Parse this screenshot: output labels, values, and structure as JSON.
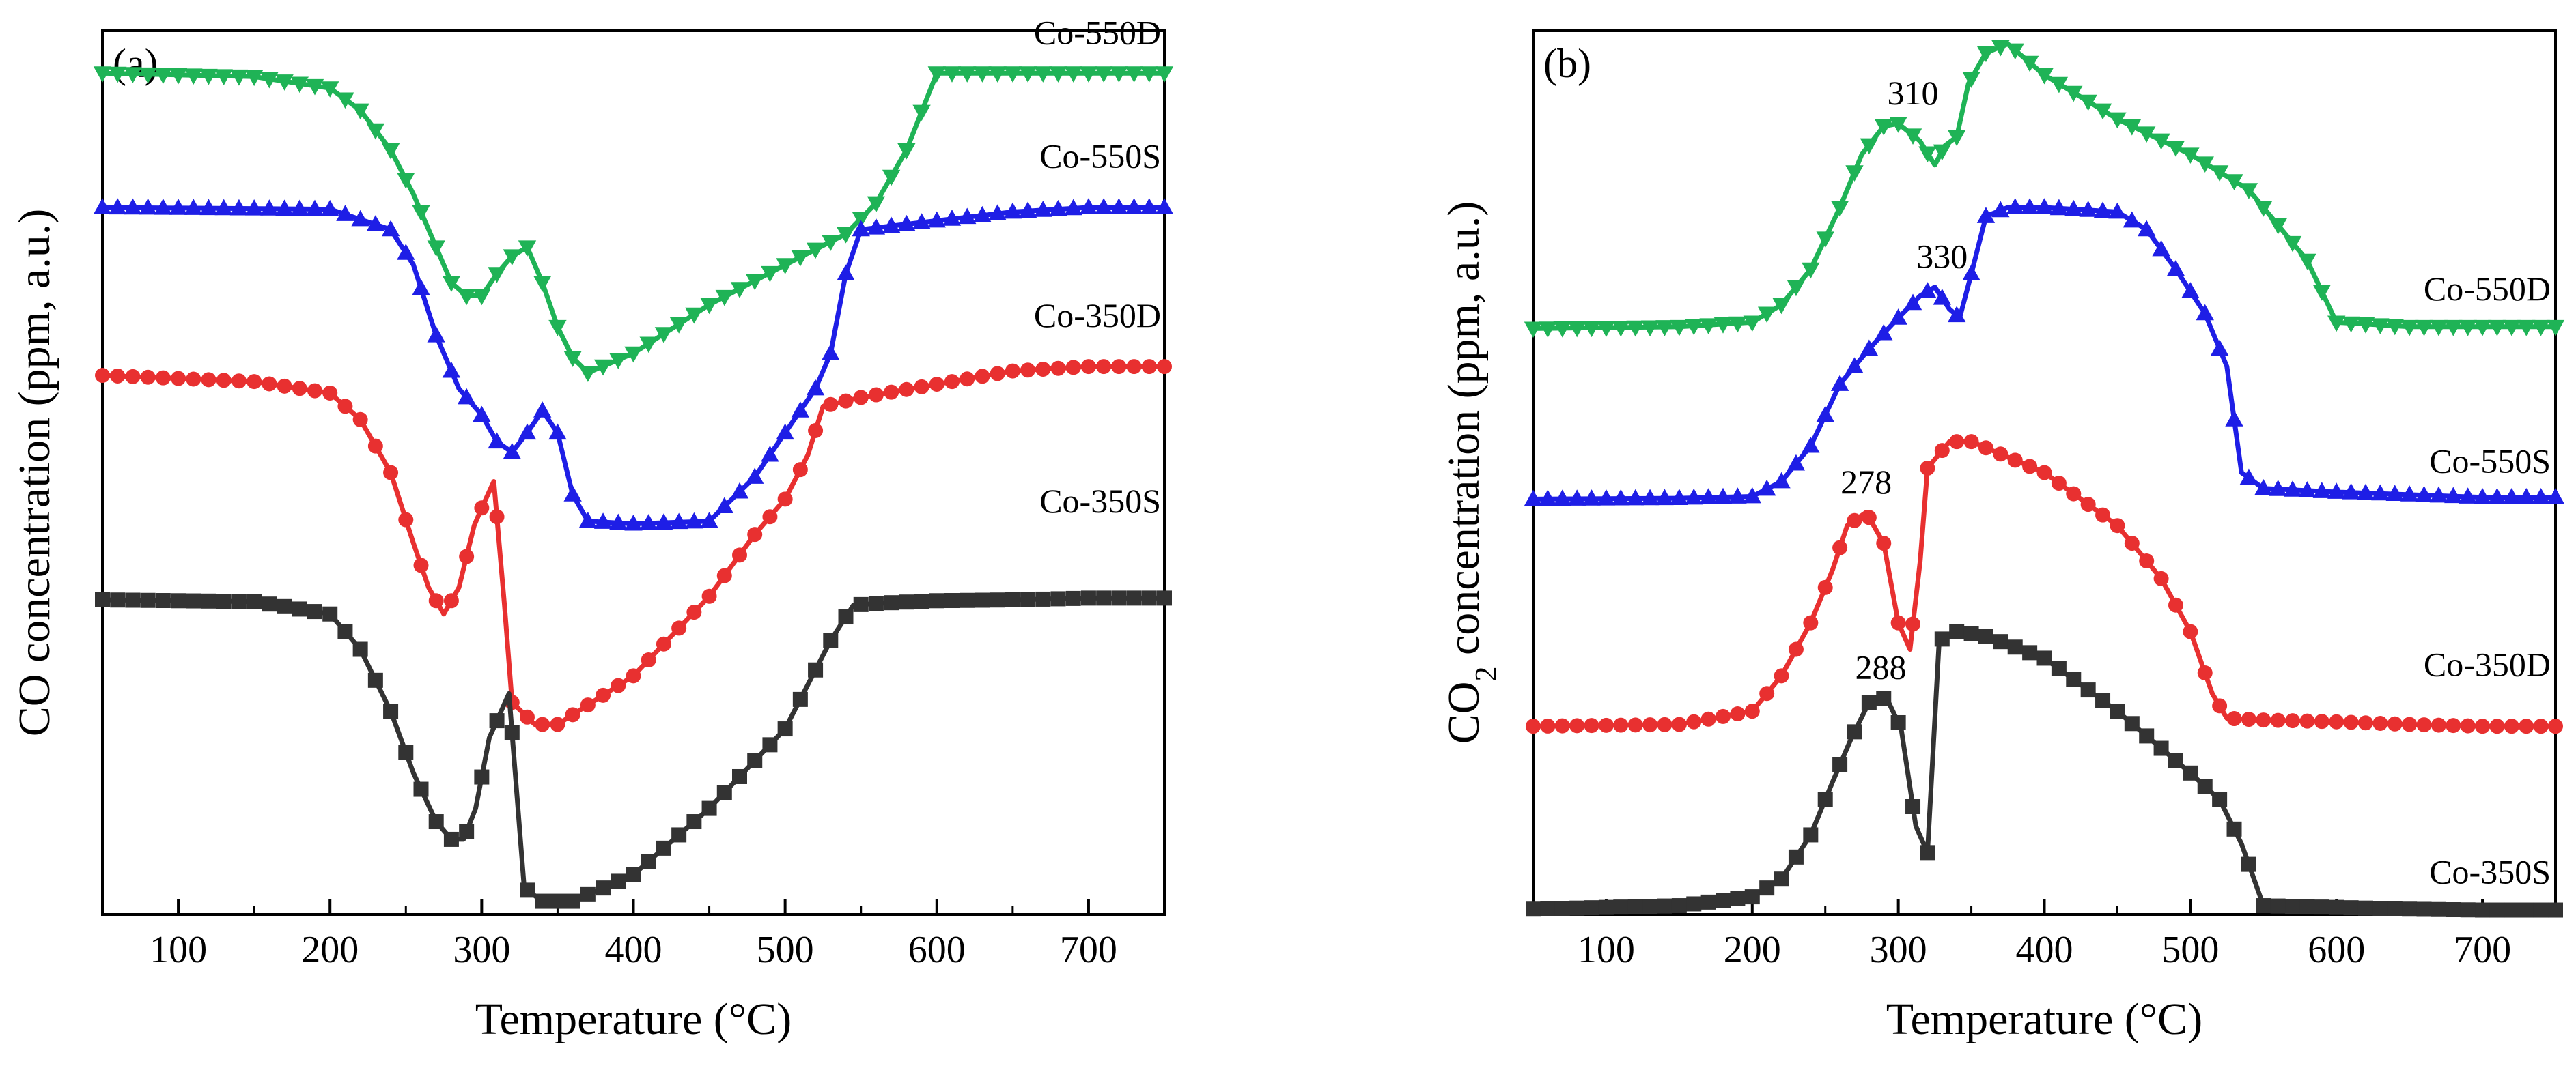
{
  "chart_data": [
    {
      "type": "line",
      "panel_label": "(a)",
      "xlabel": "Temperature (°C)",
      "ylabel": "CO concentration (ppm, a.u.)",
      "xlim": [
        50,
        750
      ],
      "ylim": [
        0,
        1
      ],
      "x_ticks": [
        100,
        200,
        300,
        400,
        500,
        600,
        700
      ],
      "y_ticks_shown": false,
      "series": [
        {
          "name": "Co-550D",
          "color": "#1FB356",
          "marker": "triangle-down",
          "x": [
            50,
            150,
            200,
            220,
            240,
            255,
            270,
            280,
            290,
            300,
            310,
            320,
            330,
            340,
            350,
            360,
            370,
            400,
            450,
            500,
            540,
            560,
            580,
            600,
            650,
            700,
            750
          ],
          "y": [
            0.957,
            0.953,
            0.94,
            0.915,
            0.87,
            0.82,
            0.76,
            0.72,
            0.705,
            0.705,
            0.73,
            0.75,
            0.76,
            0.72,
            0.67,
            0.635,
            0.618,
            0.64,
            0.695,
            0.74,
            0.775,
            0.81,
            0.87,
            0.957,
            0.957,
            0.957,
            0.957
          ]
        },
        {
          "name": "Co-550S",
          "color": "#1E1EE6",
          "marker": "triangle-up",
          "x": [
            50,
            200,
            240,
            255,
            270,
            285,
            300,
            310,
            320,
            330,
            340,
            350,
            360,
            370,
            400,
            450,
            480,
            500,
            520,
            530,
            540,
            550,
            600,
            650,
            700,
            750
          ],
          "y": [
            0.805,
            0.803,
            0.78,
            0.74,
            0.66,
            0.6,
            0.57,
            0.54,
            0.528,
            0.55,
            0.575,
            0.55,
            0.48,
            0.45,
            0.447,
            0.45,
            0.5,
            0.55,
            0.6,
            0.64,
            0.73,
            0.78,
            0.79,
            0.8,
            0.805,
            0.805
          ]
        },
        {
          "name": "Co-350D",
          "color": "#E83030",
          "marker": "circle",
          "x": [
            50,
            150,
            200,
            220,
            240,
            255,
            265,
            275,
            285,
            295,
            300,
            308,
            315,
            320,
            335,
            350,
            400,
            450,
            480,
            500,
            515,
            525,
            550,
            600,
            650,
            700,
            750
          ],
          "y": [
            0.61,
            0.603,
            0.59,
            0.56,
            0.5,
            0.42,
            0.37,
            0.34,
            0.37,
            0.44,
            0.46,
            0.49,
            0.35,
            0.24,
            0.215,
            0.215,
            0.27,
            0.36,
            0.43,
            0.47,
            0.52,
            0.575,
            0.585,
            0.6,
            0.615,
            0.62,
            0.62
          ]
        },
        {
          "name": "Co-350S",
          "color": "#333333",
          "marker": "square",
          "x": [
            50,
            150,
            200,
            220,
            240,
            255,
            270,
            280,
            288,
            296,
            305,
            318,
            328,
            340,
            360,
            400,
            450,
            500,
            530,
            545,
            560,
            600,
            650,
            700,
            750
          ],
          "y": [
            0.356,
            0.354,
            0.34,
            0.3,
            0.23,
            0.16,
            0.105,
            0.085,
            0.085,
            0.12,
            0.2,
            0.25,
            0.03,
            0.015,
            0.015,
            0.045,
            0.12,
            0.21,
            0.31,
            0.35,
            0.352,
            0.355,
            0.356,
            0.358,
            0.358
          ]
        }
      ],
      "annotations": []
    },
    {
      "type": "line",
      "panel_label": "(b)",
      "xlabel": "Temperature (°C)",
      "ylabel": "CO2 concentration (ppm, a.u.)",
      "ylabel_main": "CO",
      "ylabel_sub": "2",
      "ylabel_rest": " concentration (ppm, a.u.)",
      "xlim": [
        50,
        750
      ],
      "ylim": [
        0,
        1
      ],
      "x_ticks": [
        100,
        200,
        300,
        400,
        500,
        600,
        700
      ],
      "y_ticks_shown": false,
      "series": [
        {
          "name": "Co-550D",
          "color": "#1FB356",
          "marker": "triangle-down",
          "x": [
            50,
            150,
            200,
            220,
            240,
            260,
            275,
            290,
            300,
            315,
            325,
            332,
            340,
            348,
            360,
            375,
            400,
            450,
            500,
            540,
            560,
            580,
            600,
            650,
            700,
            750
          ],
          "y": [
            0.663,
            0.665,
            0.67,
            0.69,
            0.73,
            0.8,
            0.86,
            0.892,
            0.895,
            0.875,
            0.848,
            0.87,
            0.88,
            0.94,
            0.975,
            0.985,
            0.95,
            0.9,
            0.86,
            0.82,
            0.78,
            0.74,
            0.67,
            0.665,
            0.665,
            0.665
          ]
        },
        {
          "name": "Co-550S",
          "color": "#1E1EE6",
          "marker": "triangle-up",
          "x": [
            50,
            150,
            200,
            220,
            240,
            260,
            280,
            300,
            315,
            325,
            335,
            342,
            350,
            360,
            375,
            400,
            450,
            470,
            490,
            510,
            525,
            535,
            550,
            600,
            650,
            700,
            750
          ],
          "y": [
            0.47,
            0.471,
            0.473,
            0.49,
            0.53,
            0.6,
            0.64,
            0.675,
            0.7,
            0.71,
            0.685,
            0.675,
            0.725,
            0.79,
            0.8,
            0.8,
            0.795,
            0.775,
            0.73,
            0.68,
            0.62,
            0.5,
            0.482,
            0.478,
            0.475,
            0.472,
            0.472
          ]
        },
        {
          "name": "Co-350D",
          "color": "#E83030",
          "marker": "circle",
          "x": [
            50,
            150,
            200,
            220,
            240,
            255,
            265,
            278,
            290,
            300,
            308,
            315,
            320,
            335,
            350,
            400,
            450,
            480,
            500,
            515,
            525,
            550,
            600,
            650,
            700,
            750
          ],
          "y": [
            0.213,
            0.215,
            0.23,
            0.27,
            0.33,
            0.39,
            0.44,
            0.455,
            0.42,
            0.33,
            0.3,
            0.4,
            0.505,
            0.535,
            0.535,
            0.5,
            0.44,
            0.38,
            0.32,
            0.25,
            0.222,
            0.22,
            0.218,
            0.215,
            0.213,
            0.213
          ]
        },
        {
          "name": "Co-350S",
          "color": "#333333",
          "marker": "square",
          "x": [
            50,
            150,
            200,
            220,
            240,
            255,
            268,
            280,
            292,
            302,
            312,
            320,
            328,
            340,
            360,
            400,
            450,
            500,
            520,
            535,
            550,
            600,
            650,
            700,
            750
          ],
          "y": [
            0.006,
            0.01,
            0.02,
            0.04,
            0.09,
            0.15,
            0.2,
            0.24,
            0.245,
            0.21,
            0.1,
            0.07,
            0.31,
            0.32,
            0.315,
            0.29,
            0.23,
            0.16,
            0.13,
            0.08,
            0.01,
            0.008,
            0.006,
            0.005,
            0.005
          ]
        }
      ],
      "annotations": [
        {
          "text": "310",
          "x": 310,
          "y": 0.895,
          "series": "Co-550D"
        },
        {
          "text": "330",
          "x": 330,
          "y": 0.71,
          "series": "Co-550S"
        },
        {
          "text": "278",
          "x": 278,
          "y": 0.455,
          "series": "Co-350D"
        },
        {
          "text": "288",
          "x": 288,
          "y": 0.245,
          "series": "Co-350S"
        }
      ]
    }
  ]
}
